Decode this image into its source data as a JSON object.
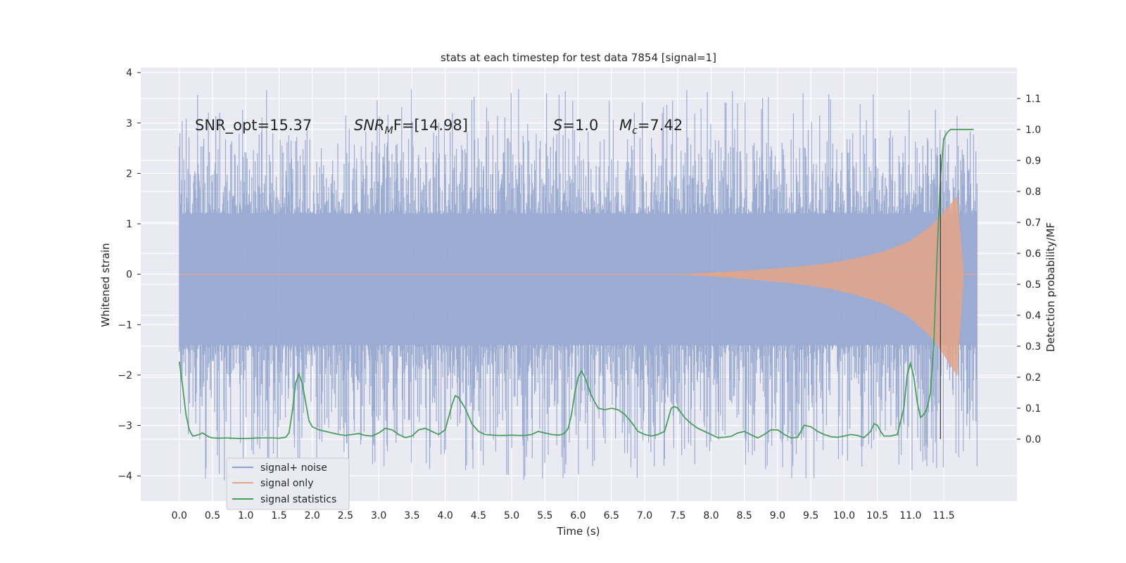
{
  "chart_data": {
    "type": "line",
    "title": "stats at each timestep for test data 7854 [signal=1]",
    "xlabel": "Time (s)",
    "ylabel_left": "Whitened strain",
    "ylabel_right": "Detection probability/MF",
    "xlim": [
      -0.58,
      12.6
    ],
    "ylim_left": [
      -4.5,
      4.1
    ],
    "ylim_right": [
      -0.2,
      1.2
    ],
    "x_ticks": [
      "0.0",
      "0.5",
      "1.0",
      "1.5",
      "2.0",
      "2.5",
      "3.0",
      "3.5",
      "4.0",
      "4.5",
      "5.0",
      "5.5",
      "6.0",
      "6.5",
      "7.0",
      "7.5",
      "8.0",
      "8.5",
      "9.0",
      "9.5",
      "10.0",
      "10.5",
      "11.0",
      "11.5"
    ],
    "y_ticks_left": [
      "4",
      "3",
      "2",
      "1",
      "0",
      "−1",
      "−2",
      "−3",
      "−4"
    ],
    "y_ticks_right": [
      "1.1",
      "1.0",
      "0.9",
      "0.8",
      "0.7",
      "0.6",
      "0.5",
      "0.4",
      "0.3",
      "0.2",
      "0.1",
      "0.0"
    ],
    "annotations": [
      "SNR_opt=15.37",
      "SNR",
      "M",
      "F=[14.98]",
      "S",
      "=1.0",
      "M",
      "c",
      "=7.42"
    ],
    "legend": [
      {
        "label": "signal+ noise",
        "color": "#8da0cb"
      },
      {
        "label": "signal only",
        "color": "#e5a48a"
      },
      {
        "label": "signal statistics",
        "color": "#4a9e5c"
      }
    ],
    "vline_time": 11.45,
    "noise": {
      "t_start": 0.0,
      "t_end": 12.0,
      "envelope_high": [
        1.2,
        1.6,
        1.8,
        2.0,
        2.2,
        2.4,
        2.6,
        2.9,
        3.7
      ],
      "envelope_low": [
        -1.4,
        -1.8,
        -2.1,
        -2.4,
        -2.7,
        -3.0,
        -3.3,
        -3.6,
        -4.1
      ]
    },
    "signal_only": {
      "t_start": 7.3,
      "t_peak": 11.7,
      "t_end": 11.8,
      "amplitude": [
        0.0,
        0.05,
        0.1,
        0.15,
        0.22,
        0.32,
        0.45,
        0.65,
        1.0,
        1.55
      ]
    },
    "series_statistics": {
      "name": "signal statistics",
      "x": [
        0.0,
        0.05,
        0.1,
        0.15,
        0.2,
        0.25,
        0.3,
        0.35,
        0.4,
        0.45,
        0.5,
        0.6,
        0.7,
        0.8,
        0.9,
        1.0,
        1.1,
        1.2,
        1.3,
        1.4,
        1.5,
        1.6,
        1.65,
        1.7,
        1.75,
        1.8,
        1.85,
        1.9,
        1.95,
        2.0,
        2.1,
        2.2,
        2.3,
        2.4,
        2.5,
        2.6,
        2.7,
        2.8,
        2.9,
        3.0,
        3.1,
        3.2,
        3.3,
        3.4,
        3.5,
        3.6,
        3.7,
        3.8,
        3.9,
        4.0,
        4.1,
        4.15,
        4.2,
        4.3,
        4.4,
        4.5,
        4.6,
        4.7,
        4.8,
        4.9,
        5.0,
        5.1,
        5.2,
        5.3,
        5.4,
        5.5,
        5.6,
        5.7,
        5.75,
        5.8,
        5.85,
        5.9,
        5.95,
        6.0,
        6.05,
        6.1,
        6.2,
        6.3,
        6.4,
        6.5,
        6.6,
        6.7,
        6.8,
        6.9,
        7.0,
        7.1,
        7.2,
        7.3,
        7.4,
        7.45,
        7.5,
        7.55,
        7.6,
        7.7,
        7.8,
        7.9,
        8.0,
        8.1,
        8.2,
        8.3,
        8.4,
        8.5,
        8.6,
        8.7,
        8.8,
        8.9,
        9.0,
        9.1,
        9.2,
        9.3,
        9.35,
        9.4,
        9.5,
        9.6,
        9.7,
        9.8,
        9.9,
        10.0,
        10.1,
        10.2,
        10.3,
        10.4,
        10.45,
        10.5,
        10.55,
        10.6,
        10.7,
        10.8,
        10.9,
        10.95,
        11.0,
        11.05,
        11.1,
        11.15,
        11.2,
        11.25,
        11.3,
        11.35,
        11.4,
        11.45,
        11.5,
        11.55,
        11.6,
        11.7,
        11.8,
        11.9,
        11.95
      ],
      "y": [
        0.25,
        0.17,
        0.08,
        0.03,
        0.01,
        0.012,
        0.015,
        0.02,
        0.013,
        0.007,
        0.004,
        0.003,
        0.004,
        0.003,
        0.002,
        0.002,
        0.003,
        0.004,
        0.004,
        0.004,
        0.003,
        0.006,
        0.02,
        0.09,
        0.18,
        0.21,
        0.18,
        0.12,
        0.06,
        0.04,
        0.03,
        0.025,
        0.02,
        0.015,
        0.012,
        0.015,
        0.018,
        0.012,
        0.01,
        0.02,
        0.035,
        0.03,
        0.015,
        0.005,
        0.01,
        0.03,
        0.035,
        0.025,
        0.015,
        0.03,
        0.11,
        0.14,
        0.135,
        0.1,
        0.05,
        0.025,
        0.015,
        0.013,
        0.012,
        0.012,
        0.013,
        0.012,
        0.012,
        0.015,
        0.025,
        0.02,
        0.015,
        0.013,
        0.015,
        0.02,
        0.035,
        0.08,
        0.15,
        0.2,
        0.22,
        0.2,
        0.14,
        0.1,
        0.095,
        0.1,
        0.095,
        0.08,
        0.055,
        0.025,
        0.015,
        0.01,
        0.015,
        0.025,
        0.1,
        0.105,
        0.1,
        0.085,
        0.07,
        0.05,
        0.035,
        0.025,
        0.015,
        0.005,
        0.006,
        0.009,
        0.02,
        0.025,
        0.014,
        0.004,
        0.015,
        0.03,
        0.03,
        0.015,
        0.004,
        0.006,
        0.025,
        0.045,
        0.04,
        0.025,
        0.015,
        0.008,
        0.006,
        0.01,
        0.015,
        0.012,
        0.005,
        0.025,
        0.05,
        0.045,
        0.025,
        0.01,
        0.01,
        0.015,
        0.1,
        0.21,
        0.245,
        0.2,
        0.12,
        0.07,
        0.08,
        0.1,
        0.15,
        0.31,
        0.6,
        0.85,
        0.97,
        0.99,
        1.0,
        1.0,
        1.0,
        1.0,
        1.0
      ]
    }
  }
}
